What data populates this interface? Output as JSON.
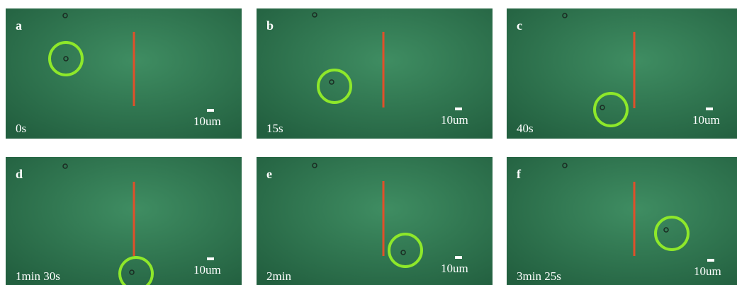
{
  "panels": [
    {
      "letter": "a",
      "time": "0s",
      "scale": "10um"
    },
    {
      "letter": "b",
      "time": "15s",
      "scale": "10um"
    },
    {
      "letter": "c",
      "time": "40s",
      "scale": "10um"
    },
    {
      "letter": "d",
      "time": "1min 30s",
      "scale": "10um"
    },
    {
      "letter": "e",
      "time": "2min",
      "scale": "10um"
    },
    {
      "letter": "f",
      "time": "3min 25s",
      "scale": "10um"
    }
  ]
}
